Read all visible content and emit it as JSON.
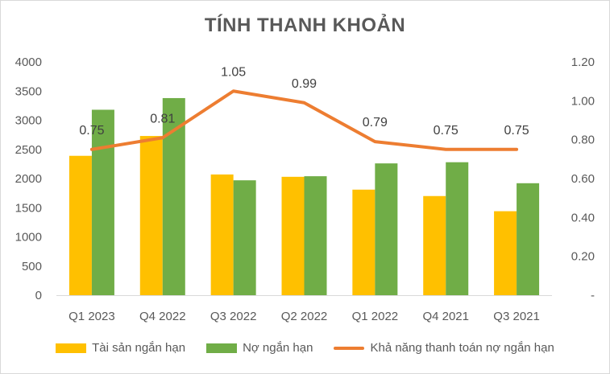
{
  "chart_data": {
    "type": "bar",
    "title": "TÍNH THANH KHOẢN",
    "categories": [
      "Q1 2023",
      "Q4 2022",
      "Q3 2022",
      "Q2 2022",
      "Q1 2022",
      "Q4 2021",
      "Q3 2021"
    ],
    "series": [
      {
        "name": "Tài sản ngắn hạn",
        "type": "bar",
        "axis": "left",
        "color": "#FFC000",
        "values": [
          2390,
          2730,
          2070,
          2030,
          1810,
          1700,
          1440
        ]
      },
      {
        "name": "Nợ ngắn hạn",
        "type": "bar",
        "axis": "left",
        "color": "#70AD47",
        "values": [
          3180,
          3380,
          1970,
          2040,
          2260,
          2280,
          1920
        ]
      },
      {
        "name": "Khả năng thanh toán nợ ngắn hạn",
        "type": "line",
        "axis": "right",
        "color": "#ED7D31",
        "values": [
          0.75,
          0.81,
          1.05,
          0.99,
          0.79,
          0.75,
          0.75
        ],
        "labels": [
          "0.75",
          "0.81",
          "1.05",
          "0.99",
          "0.79",
          "0.75",
          "0.75"
        ]
      }
    ],
    "y_left": {
      "ylim": [
        0,
        4000
      ],
      "ticks": [
        "0",
        "500",
        "1000",
        "1500",
        "2000",
        "2500",
        "3000",
        "3500",
        "4000"
      ],
      "tick_values": [
        0,
        500,
        1000,
        1500,
        2000,
        2500,
        3000,
        3500,
        4000
      ]
    },
    "y_right": {
      "ylim": [
        0,
        1.2
      ],
      "ticks": [
        "-",
        "0.20",
        "0.40",
        "0.60",
        "0.80",
        "1.00",
        "1.20"
      ],
      "tick_values": [
        0,
        0.2,
        0.4,
        0.6,
        0.8,
        1.0,
        1.2
      ]
    },
    "grid": false,
    "legend": "bottom"
  }
}
